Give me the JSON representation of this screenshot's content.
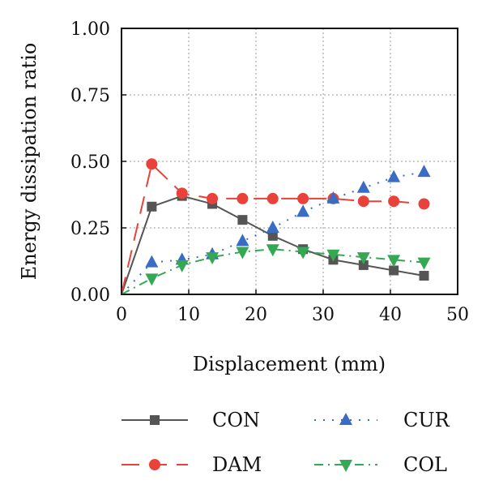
{
  "chart_data": {
    "type": "line",
    "xlabel": "Displacement (mm)",
    "ylabel": "Energy dissipation ratio",
    "xlim": [
      0,
      50
    ],
    "ylim": [
      0,
      1
    ],
    "xticks": [
      "0",
      "10",
      "20",
      "30",
      "40",
      "50"
    ],
    "yticks": [
      "0.00",
      "0.25",
      "0.50",
      "0.75",
      "1.00"
    ],
    "grid": true,
    "legend_placement": "bottom",
    "series": [
      {
        "name": "CON",
        "color": "#555555",
        "marker": "square",
        "line_style": "solid",
        "x": [
          0,
          4.5,
          9,
          13.5,
          18,
          22.5,
          27,
          31.5,
          36,
          40.5,
          45
        ],
        "y": [
          0.0,
          0.33,
          0.37,
          0.34,
          0.28,
          0.22,
          0.17,
          0.13,
          0.11,
          0.09,
          0.07
        ]
      },
      {
        "name": "DAM",
        "color": "#e8423b",
        "marker": "circle",
        "line_style": "dashed",
        "x": [
          0,
          4.5,
          9,
          13.5,
          18,
          22.5,
          27,
          31.5,
          36,
          40.5,
          45
        ],
        "y": [
          0.0,
          0.49,
          0.38,
          0.36,
          0.36,
          0.36,
          0.36,
          0.36,
          0.35,
          0.35,
          0.34
        ]
      },
      {
        "name": "CUR",
        "color": "#3b6cc4",
        "marker": "triangle-up",
        "line_style": "dotted",
        "x": [
          0,
          4.5,
          9,
          13.5,
          18,
          22.5,
          27,
          31.5,
          36,
          40.5,
          45
        ],
        "y": [
          0.0,
          0.12,
          0.13,
          0.15,
          0.2,
          0.25,
          0.31,
          0.36,
          0.4,
          0.44,
          0.46
        ]
      },
      {
        "name": "COL",
        "color": "#34a853",
        "marker": "triangle-down",
        "line_style": "dash-dot",
        "x": [
          0,
          4.5,
          9,
          13.5,
          18,
          22.5,
          27,
          31.5,
          36,
          40.5,
          45
        ],
        "y": [
          0.0,
          0.06,
          0.11,
          0.14,
          0.16,
          0.17,
          0.16,
          0.15,
          0.14,
          0.13,
          0.12
        ]
      }
    ]
  }
}
